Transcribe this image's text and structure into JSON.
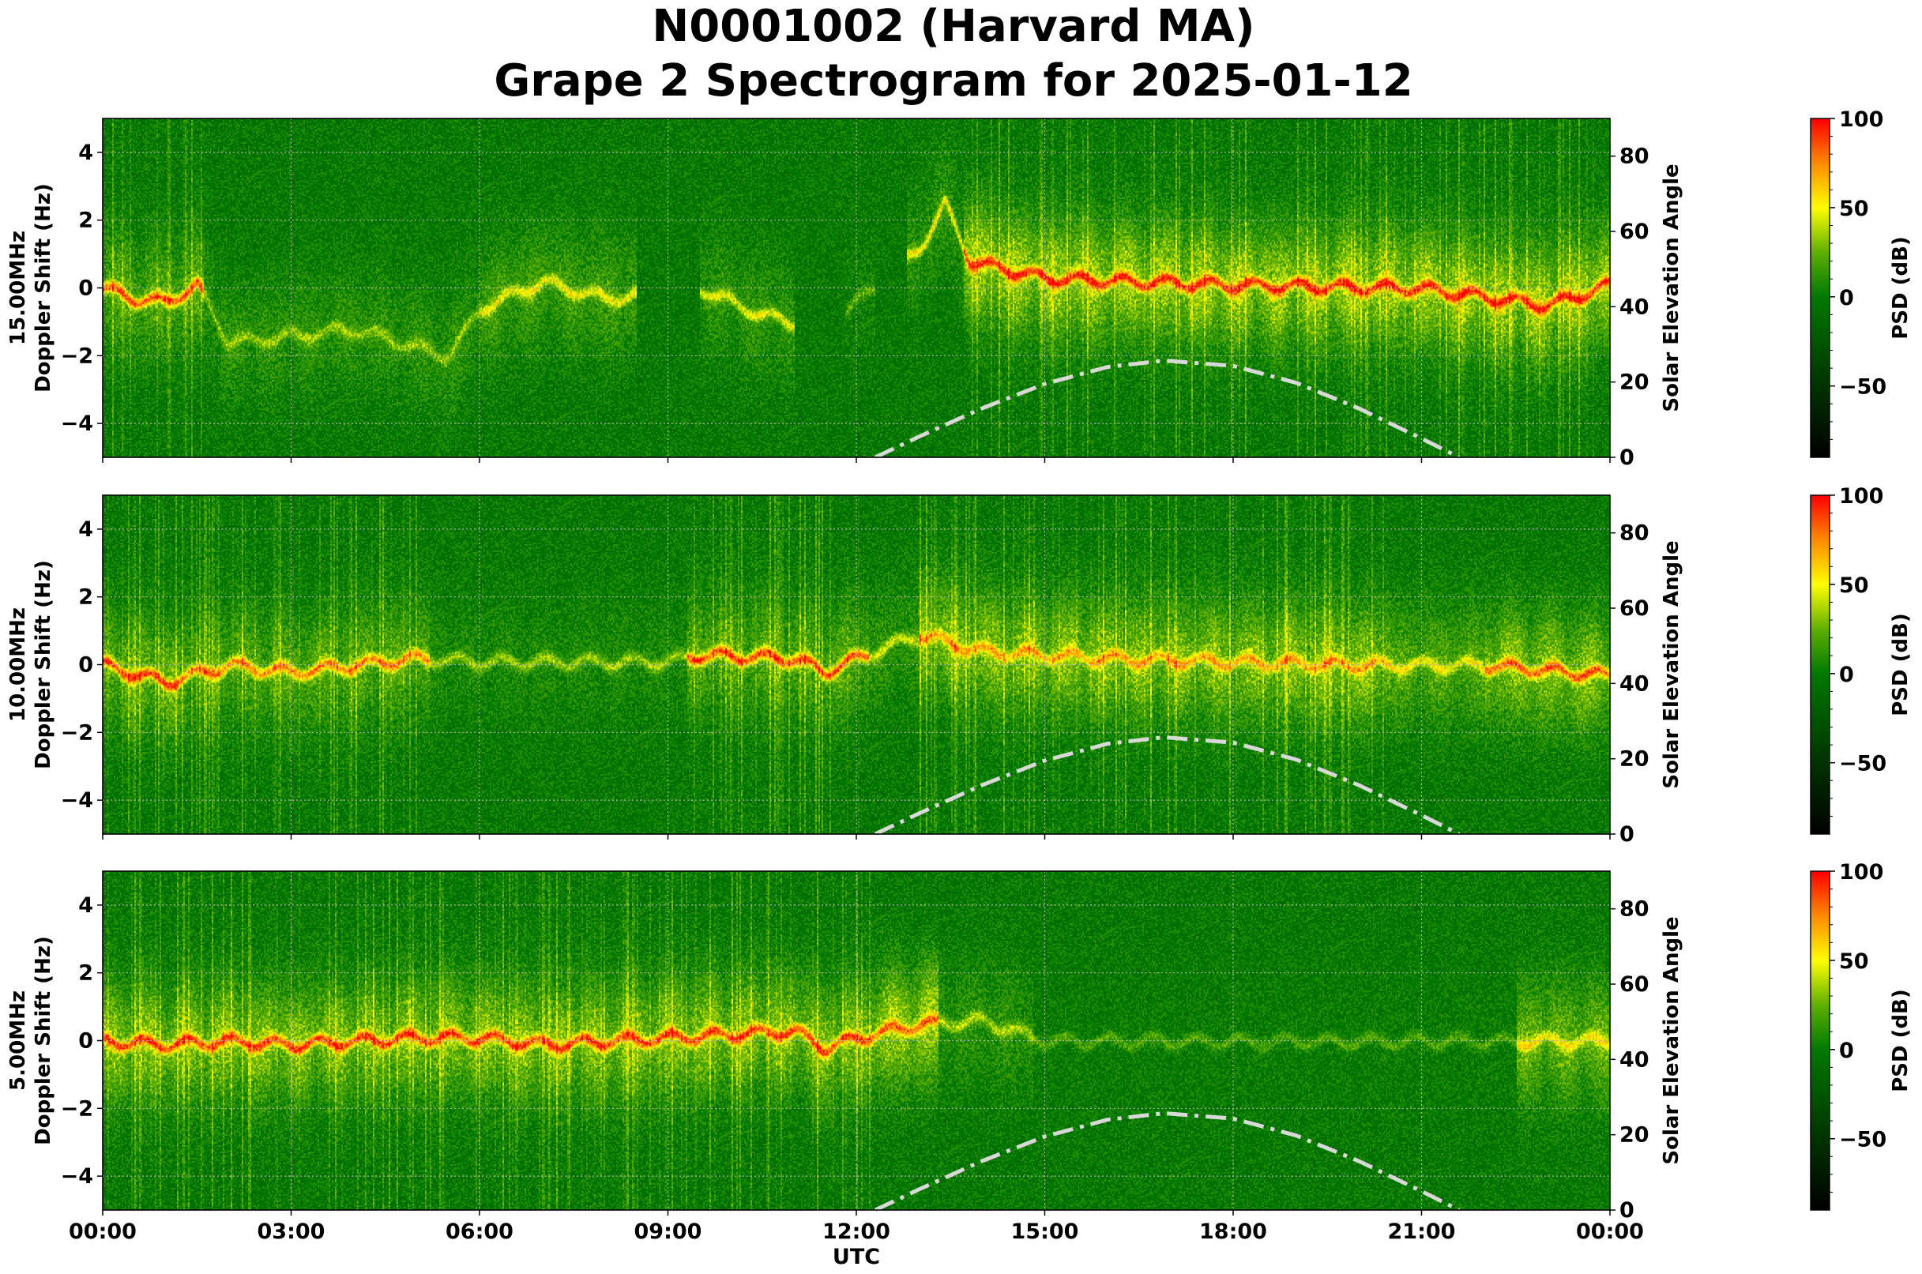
{
  "title_line1": "N0001002 (Harvard MA)",
  "title_line2": "Grape 2 Spectrogram for 2025-01-12",
  "chart_data": {
    "type": "heatmap",
    "xlabel": "UTC",
    "x_ticks": [
      "00:00",
      "03:00",
      "06:00",
      "09:00",
      "12:00",
      "15:00",
      "18:00",
      "21:00",
      "00:00"
    ],
    "xlim_hours": [
      0,
      24
    ],
    "ylabel_left": "Doppler Shift (Hz)",
    "ylim_left": [
      -5,
      5
    ],
    "y_ticks_left": [
      "4",
      "2",
      "0",
      "−2",
      "−4"
    ],
    "y_tick_values_left": [
      4,
      2,
      0,
      -2,
      -4
    ],
    "ylabel_right": "Solar Elevation Angle",
    "ylim_right": [
      0,
      90
    ],
    "y_ticks_right": [
      "0",
      "20",
      "40",
      "60",
      "80"
    ],
    "y_tick_values_right": [
      0,
      20,
      40,
      60,
      80
    ],
    "colorbar": {
      "label": "PSD (dB)",
      "range": [
        -90,
        100
      ],
      "ticks": [
        "100",
        "50",
        "0",
        "−50"
      ],
      "tick_values": [
        100,
        50,
        0,
        -50
      ],
      "colormap_stops": [
        [
          -90,
          "#000000"
        ],
        [
          -45,
          "#003a00"
        ],
        [
          0,
          "#007a00"
        ],
        [
          25,
          "#5fb000"
        ],
        [
          50,
          "#ffff00"
        ],
        [
          75,
          "#ff8c00"
        ],
        [
          100,
          "#ff0000"
        ]
      ]
    },
    "grid": true,
    "solar_elevation": {
      "style": "dash-dot",
      "color": "#d8d8d8",
      "hours": [
        12.3,
        13,
        14,
        15,
        16,
        16.9,
        18,
        19,
        20,
        21,
        21.6
      ],
      "degrees": [
        0,
        5.5,
        13,
        19.5,
        24,
        25.7,
        24.3,
        19.8,
        13,
        5,
        0
      ]
    },
    "panels": [
      {
        "freq_label": "15.00MHz",
        "trace": [
          [
            0,
            0
          ],
          [
            0.5,
            -0.3
          ],
          [
            1,
            -0.4
          ],
          [
            1.5,
            0.1
          ],
          [
            2,
            -1.6
          ],
          [
            4,
            -1.2
          ],
          [
            5.5,
            -2
          ],
          [
            6,
            -0.6
          ],
          [
            7,
            0.2
          ],
          [
            8,
            -0.3
          ],
          [
            9.5,
            0
          ],
          [
            10.5,
            -0.8
          ],
          [
            11.5,
            -1.2
          ],
          [
            13,
            1.2
          ],
          [
            13.4,
            2.5
          ],
          [
            13.8,
            0.8
          ],
          [
            15,
            0.3
          ],
          [
            18,
            0.1
          ],
          [
            21,
            0
          ],
          [
            23,
            -0.5
          ],
          [
            24,
            0.1
          ]
        ],
        "activity": [
          [
            0,
            1.6,
            70,
            25
          ],
          [
            1.6,
            6,
            25,
            15
          ],
          [
            6,
            8.5,
            38,
            20
          ],
          [
            9.5,
            11,
            38,
            15
          ],
          [
            11.8,
            12.3,
            25,
            5
          ],
          [
            12.8,
            13.7,
            45,
            15
          ],
          [
            13.7,
            24,
            68,
            40
          ]
        ],
        "streaks": [
          [
            0,
            1.6
          ],
          [
            13.7,
            24
          ]
        ]
      },
      {
        "freq_label": "10.00MHz",
        "trace": [
          [
            0,
            0
          ],
          [
            1,
            -0.5
          ],
          [
            2,
            0
          ],
          [
            3,
            -0.2
          ],
          [
            4,
            0
          ],
          [
            5,
            0.2
          ],
          [
            6,
            0.1
          ],
          [
            9,
            0.1
          ],
          [
            9.5,
            0.3
          ],
          [
            11,
            0.2
          ],
          [
            11.5,
            -0.2
          ],
          [
            12,
            0.2
          ],
          [
            13,
            0.9
          ],
          [
            14,
            0.4
          ],
          [
            16,
            0.2
          ],
          [
            20,
            0
          ],
          [
            22,
            0
          ],
          [
            24,
            -0.3
          ]
        ],
        "activity": [
          [
            0,
            1.2,
            72,
            30
          ],
          [
            1.2,
            5.2,
            60,
            25
          ],
          [
            5.2,
            9.3,
            30,
            10
          ],
          [
            9.3,
            12.2,
            72,
            25
          ],
          [
            12.2,
            13,
            35,
            15
          ],
          [
            13,
            20.5,
            45,
            35
          ],
          [
            20.5,
            22,
            35,
            25
          ],
          [
            22,
            24,
            62,
            35
          ]
        ],
        "streaks": [
          [
            0,
            5.2
          ],
          [
            9.3,
            12.2
          ],
          [
            13,
            20.5
          ]
        ]
      },
      {
        "freq_label": "5.00MHz",
        "trace": [
          [
            0,
            0
          ],
          [
            1,
            -0.1
          ],
          [
            2,
            0
          ],
          [
            3,
            -0.1
          ],
          [
            4,
            0
          ],
          [
            5,
            0.1
          ],
          [
            6,
            0.1
          ],
          [
            7,
            -0.1
          ],
          [
            8,
            0
          ],
          [
            9,
            0.1
          ],
          [
            10,
            0.2
          ],
          [
            11,
            0.3
          ],
          [
            11.5,
            -0.2
          ],
          [
            12,
            0.1
          ],
          [
            12.5,
            0.3
          ],
          [
            13,
            0.5
          ],
          [
            14,
            0.6
          ],
          [
            15,
            0
          ],
          [
            24,
            0
          ]
        ],
        "activity": [
          [
            0,
            12.2,
            66,
            35
          ],
          [
            12.2,
            13.3,
            55,
            40
          ],
          [
            13.3,
            14.8,
            30,
            15
          ],
          [
            14.8,
            22.5,
            22,
            2
          ],
          [
            22.5,
            24,
            35,
            30
          ]
        ],
        "streaks": [
          [
            0,
            12.5
          ]
        ]
      }
    ]
  }
}
